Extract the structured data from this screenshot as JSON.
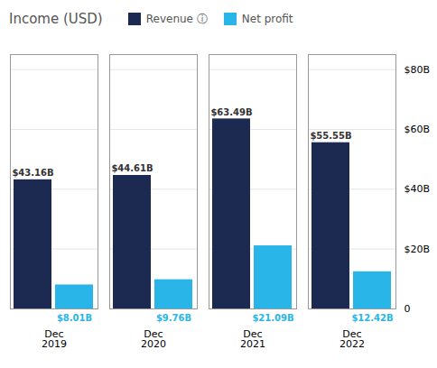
{
  "chart_data": {
    "type": "bar",
    "title": "Income (USD)",
    "categories": [
      "Dec\n2019",
      "Dec\n2020",
      "Dec\n2021",
      "Dec\n2022"
    ],
    "series": [
      {
        "name": "Revenue ⓘ",
        "color": "#1c2951",
        "values": [
          43.16,
          44.61,
          63.49,
          55.55
        ],
        "value_labels": [
          "$43.16B",
          "$44.61B",
          "$63.49B",
          "$55.55B"
        ]
      },
      {
        "name": "Net profit",
        "color": "#29b5e8",
        "values": [
          8.01,
          9.76,
          21.09,
          12.42
        ],
        "value_labels": [
          "$8.01B",
          "$9.76B",
          "$21.09B",
          "$12.42B"
        ]
      }
    ],
    "ylim": [
      0,
      85
    ],
    "yticks": [
      0,
      {
        "value": 20,
        "label": "$20B"
      },
      {
        "value": 40,
        "label": "$40B"
      },
      {
        "value": 60,
        "label": "$60B"
      },
      {
        "value": 80,
        "label": "$80B"
      }
    ],
    "grid": true,
    "data_labels": true,
    "legend": "top"
  }
}
